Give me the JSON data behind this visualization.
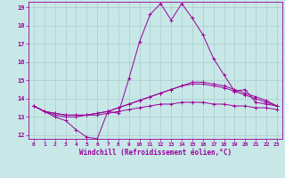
{
  "xlabel": "Windchill (Refroidissement éolien,°C)",
  "xlim": [
    -0.5,
    23.5
  ],
  "ylim": [
    11.8,
    19.3
  ],
  "yticks": [
    12,
    13,
    14,
    15,
    16,
    17,
    18,
    19
  ],
  "xticks": [
    0,
    1,
    2,
    3,
    4,
    5,
    6,
    7,
    8,
    9,
    10,
    11,
    12,
    13,
    14,
    15,
    16,
    17,
    18,
    19,
    20,
    21,
    22,
    23
  ],
  "bg_color": "#c8e8e8",
  "line_color": "#990099",
  "grid_color": "#aacccc",
  "lines": [
    [
      13.6,
      13.3,
      13.0,
      12.8,
      12.3,
      11.9,
      11.8,
      13.3,
      13.2,
      15.1,
      17.1,
      18.6,
      19.2,
      18.3,
      19.2,
      18.4,
      17.5,
      16.2,
      15.3,
      14.4,
      14.5,
      13.8,
      13.7,
      13.6
    ],
    [
      13.6,
      13.3,
      13.1,
      13.0,
      13.0,
      13.1,
      13.2,
      13.3,
      13.5,
      13.7,
      13.9,
      14.1,
      14.3,
      14.5,
      14.7,
      14.8,
      14.8,
      14.7,
      14.6,
      14.4,
      14.2,
      14.0,
      13.8,
      13.6
    ],
    [
      13.6,
      13.3,
      13.2,
      13.1,
      13.1,
      13.1,
      13.2,
      13.3,
      13.5,
      13.7,
      13.9,
      14.1,
      14.3,
      14.5,
      14.7,
      14.9,
      14.9,
      14.8,
      14.7,
      14.5,
      14.3,
      14.1,
      13.9,
      13.6
    ],
    [
      13.6,
      13.3,
      13.2,
      13.1,
      13.1,
      13.1,
      13.1,
      13.2,
      13.3,
      13.4,
      13.5,
      13.6,
      13.7,
      13.7,
      13.8,
      13.8,
      13.8,
      13.7,
      13.7,
      13.6,
      13.6,
      13.5,
      13.5,
      13.4
    ]
  ]
}
